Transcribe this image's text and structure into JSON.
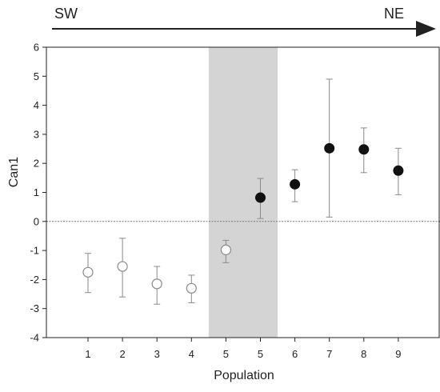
{
  "chart_data": {
    "type": "scatter",
    "xlabel": "Population",
    "ylabel": "Can1",
    "ylim": [
      -4,
      6
    ],
    "y_ticks": [
      "-4",
      "-3",
      "-2",
      "-1",
      "0",
      "1",
      "2",
      "3",
      "4",
      "5",
      "6"
    ],
    "reference_line_y": 0,
    "shaded_span": {
      "from_point_index": 4,
      "to_point_index": 5
    },
    "direction": {
      "start": "SW",
      "end": "NE"
    },
    "points": [
      {
        "category": "1",
        "y": -1.75,
        "err_low": -2.45,
        "err_high": -1.1,
        "filled": false
      },
      {
        "category": "2",
        "y": -1.55,
        "err_low": -2.6,
        "err_high": -0.58,
        "filled": false
      },
      {
        "category": "3",
        "y": -2.15,
        "err_low": -2.85,
        "err_high": -1.55,
        "filled": false
      },
      {
        "category": "4",
        "y": -2.3,
        "err_low": -2.8,
        "err_high": -1.85,
        "filled": false
      },
      {
        "category": "5",
        "y": -0.98,
        "err_low": -1.42,
        "err_high": -0.65,
        "filled": false
      },
      {
        "category": "5",
        "y": 0.82,
        "err_low": 0.1,
        "err_high": 1.48,
        "filled": true
      },
      {
        "category": "6",
        "y": 1.28,
        "err_low": 0.68,
        "err_high": 1.78,
        "filled": true
      },
      {
        "category": "7",
        "y": 2.52,
        "err_low": 0.15,
        "err_high": 4.9,
        "filled": true
      },
      {
        "category": "8",
        "y": 2.48,
        "err_low": 1.68,
        "err_high": 3.22,
        "filled": true
      },
      {
        "category": "9",
        "y": 1.75,
        "err_low": 0.92,
        "err_high": 2.52,
        "filled": true
      }
    ],
    "colors": {
      "shade": "#d4d4d4",
      "filled_marker": "#111111",
      "open_marker_fill": "#ffffff",
      "open_marker_stroke": "#8a8a8a",
      "error_bar": "#8a8a8a",
      "axis": "#222222",
      "zero_line": "#777777"
    }
  }
}
